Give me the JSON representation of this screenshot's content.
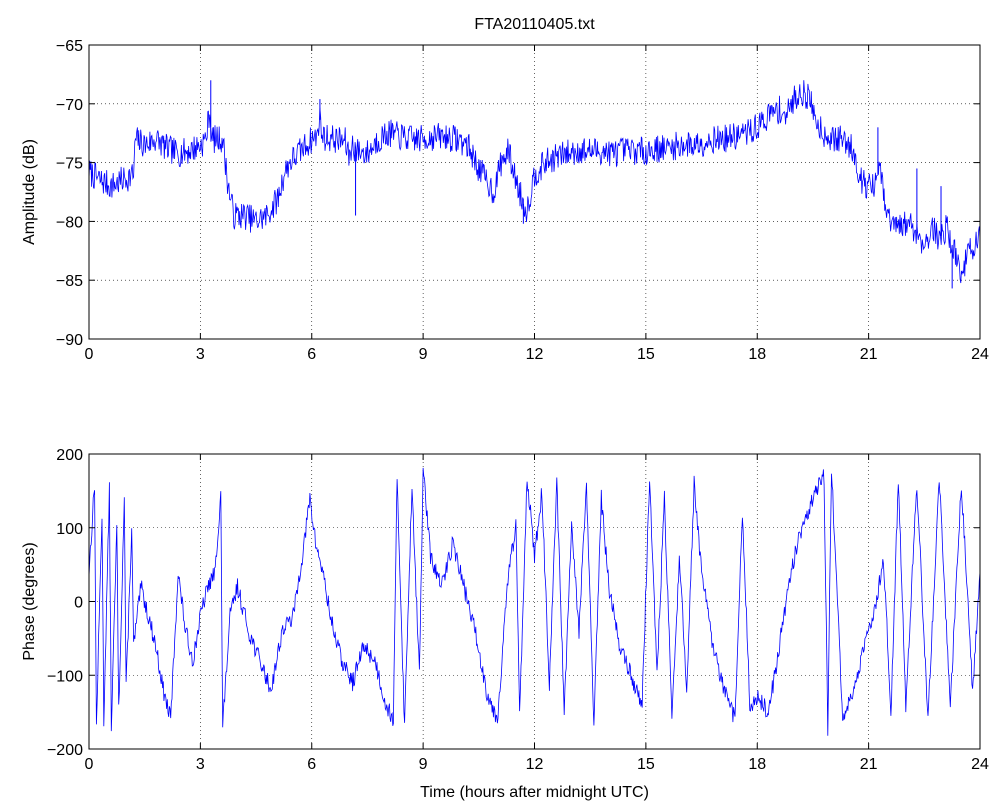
{
  "chart_data": [
    {
      "type": "line",
      "title": "FTA20110405.txt",
      "xlabel": "",
      "ylabel": "Amplitude (dB)",
      "xlim": [
        0,
        24
      ],
      "ylim": [
        -90,
        -65
      ],
      "xticks": [
        0,
        3,
        6,
        9,
        12,
        15,
        18,
        21,
        24
      ],
      "yticks": [
        -90,
        -85,
        -80,
        -75,
        -70,
        -65
      ],
      "xtick_labels": [
        "0",
        "3",
        "6",
        "9",
        "12",
        "15",
        "18",
        "21",
        "24"
      ],
      "ytick_labels": [
        "−90",
        "−85",
        "−80",
        "−75",
        "−70",
        "−65"
      ],
      "grid": true,
      "line_color": "#0000ff",
      "noise": 1.2,
      "series": [
        {
          "x": [
            0,
            0.3,
            0.6,
            0.9,
            1.2,
            1.25,
            1.5,
            1.8,
            2.1,
            2.4,
            2.7,
            3.0,
            3.15,
            3.25,
            3.3,
            3.45,
            3.6,
            3.75,
            3.9,
            4.2,
            4.5,
            4.8,
            5.1,
            5.25,
            5.4,
            5.7,
            6.0,
            6.15,
            6.2,
            6.3,
            6.6,
            6.9,
            7.0,
            7.1,
            7.2,
            7.5,
            7.8,
            8.1,
            8.4,
            8.7,
            9.0,
            9.3,
            9.6,
            9.9,
            10.2,
            10.5,
            10.7,
            10.9,
            11.1,
            11.3,
            11.5,
            11.7,
            11.8,
            12.0,
            12.3,
            12.6,
            12.9,
            13.2,
            13.5,
            13.8,
            14.1,
            14.4,
            14.7,
            15.0,
            15.3,
            15.6,
            15.9,
            16.2,
            16.5,
            16.8,
            17.1,
            17.4,
            17.7,
            18.0,
            18.3,
            18.6,
            18.8,
            19.0,
            19.2,
            19.4,
            19.6,
            19.8,
            20.0,
            20.2,
            20.4,
            20.6,
            20.8,
            21.0,
            21.2,
            21.3,
            21.4,
            21.5,
            21.7,
            21.9,
            22.1,
            22.3,
            22.5,
            22.7,
            22.9,
            23.1,
            23.3,
            23.5,
            23.7,
            24.0
          ],
          "y": [
            -75.8,
            -76.5,
            -77.0,
            -76.5,
            -76.0,
            -73.0,
            -73.5,
            -73.0,
            -73.8,
            -74.2,
            -74.0,
            -73.5,
            -73.0,
            -70.5,
            -73.0,
            -73.0,
            -73.0,
            -77.0,
            -79.5,
            -79.5,
            -80.0,
            -79.5,
            -78.0,
            -76.0,
            -75.0,
            -74.0,
            -73.0,
            -72.8,
            -71.0,
            -72.8,
            -73.0,
            -73.2,
            -74.5,
            -73.5,
            -74.0,
            -74.2,
            -73.0,
            -72.5,
            -72.8,
            -73.0,
            -73.0,
            -72.8,
            -72.8,
            -73.0,
            -73.5,
            -75.5,
            -76.5,
            -77.5,
            -75.0,
            -74.0,
            -76.5,
            -78.5,
            -79.0,
            -76.0,
            -75.0,
            -74.5,
            -74.2,
            -74.0,
            -74.0,
            -74.0,
            -74.2,
            -74.0,
            -74.0,
            -74.0,
            -73.8,
            -73.8,
            -73.5,
            -73.5,
            -73.3,
            -73.0,
            -73.0,
            -72.8,
            -72.5,
            -72.0,
            -71.0,
            -70.5,
            -71.0,
            -69.5,
            -69.0,
            -69.5,
            -71.5,
            -72.5,
            -73.0,
            -73.0,
            -73.2,
            -74.0,
            -76.5,
            -77.0,
            -77.0,
            -75.0,
            -78.0,
            -79.5,
            -80.5,
            -80.5,
            -80.0,
            -81.0,
            -82.0,
            -80.5,
            -81.5,
            -80.5,
            -82.5,
            -84.5,
            -82.5,
            -81.5
          ]
        }
      ],
      "spikes": [
        {
          "x": 3.28,
          "y": -68.0
        },
        {
          "x": 6.22,
          "y": -69.6
        },
        {
          "x": 7.18,
          "y": -79.5
        },
        {
          "x": 11.7,
          "y": -80.2
        },
        {
          "x": 21.25,
          "y": -72.0
        },
        {
          "x": 22.3,
          "y": -75.5
        },
        {
          "x": 22.95,
          "y": -77.0
        },
        {
          "x": 23.25,
          "y": -85.7
        }
      ]
    },
    {
      "type": "line",
      "title": "",
      "xlabel": "Time (hours after midnight UTC)",
      "ylabel": "Phase (degrees)",
      "xlim": [
        0,
        24
      ],
      "ylim": [
        -200,
        200
      ],
      "xticks": [
        0,
        3,
        6,
        9,
        12,
        15,
        18,
        21,
        24
      ],
      "yticks": [
        -200,
        -100,
        0,
        100,
        200
      ],
      "xtick_labels": [
        "0",
        "3",
        "6",
        "9",
        "12",
        "15",
        "18",
        "21",
        "24"
      ],
      "ytick_labels": [
        "−200",
        "−100",
        "0",
        "100",
        "200"
      ],
      "grid": true,
      "line_color": "#0000ff",
      "noise": 12,
      "series": [
        {
          "x": [
            0,
            0.15,
            0.2,
            0.35,
            0.4,
            0.55,
            0.6,
            0.75,
            0.8,
            0.95,
            1.0,
            1.15,
            1.2,
            1.4,
            1.6,
            1.8,
            2.0,
            2.2,
            2.4,
            2.6,
            2.8,
            3.0,
            3.2,
            3.4,
            3.55,
            3.6,
            3.8,
            4.0,
            4.3,
            4.6,
            4.9,
            5.2,
            5.5,
            5.8,
            5.95,
            6.1,
            6.3,
            6.5,
            6.8,
            7.1,
            7.4,
            7.7,
            8.0,
            8.2,
            8.3,
            8.5,
            8.7,
            8.9,
            9.0,
            9.2,
            9.5,
            9.8,
            10.1,
            10.4,
            10.7,
            11.0,
            11.3,
            11.5,
            11.6,
            11.8,
            12.0,
            12.2,
            12.4,
            12.6,
            12.8,
            13.0,
            13.2,
            13.4,
            13.6,
            13.8,
            14.0,
            14.3,
            14.6,
            14.9,
            15.1,
            15.3,
            15.5,
            15.7,
            15.9,
            16.1,
            16.3,
            16.5,
            16.8,
            17.1,
            17.4,
            17.6,
            17.8,
            18.0,
            18.3,
            18.6,
            18.9,
            19.2,
            19.5,
            19.8,
            19.9,
            20.0,
            20.3,
            20.6,
            20.9,
            21.2,
            21.4,
            21.6,
            21.8,
            22.0,
            22.3,
            22.6,
            22.9,
            23.2,
            23.5,
            23.8,
            24.0
          ],
          "y": [
            40,
            160,
            -170,
            120,
            -160,
            150,
            -170,
            100,
            -150,
            140,
            -120,
            100,
            -60,
            20,
            -20,
            -60,
            -120,
            -160,
            40,
            -40,
            -80,
            -20,
            20,
            40,
            150,
            -170,
            -20,
            20,
            -40,
            -80,
            -120,
            -40,
            -20,
            80,
            140,
            80,
            40,
            -20,
            -80,
            -110,
            -60,
            -80,
            -140,
            -160,
            170,
            -170,
            160,
            -100,
            180,
            60,
            20,
            80,
            20,
            -40,
            -120,
            -160,
            40,
            100,
            -150,
            170,
            60,
            150,
            -120,
            160,
            -150,
            100,
            -40,
            160,
            -170,
            140,
            20,
            -60,
            -100,
            -140,
            170,
            -100,
            140,
            -160,
            60,
            -120,
            160,
            40,
            -60,
            -120,
            -160,
            120,
            -140,
            -130,
            -150,
            -60,
            40,
            100,
            140,
            170,
            -170,
            180,
            -160,
            -120,
            -60,
            0,
            60,
            -150,
            170,
            -140,
            160,
            -160,
            170,
            -140,
            160,
            -120,
            40
          ]
        }
      ]
    }
  ]
}
